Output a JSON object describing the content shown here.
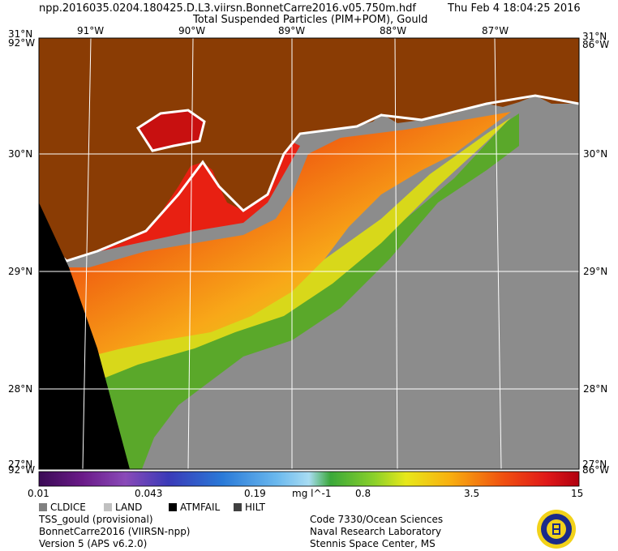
{
  "header": {
    "filename": "npp.2016035.0204.180425.D.L3.viirsn.BonnetCarre2016.v05.750m.hdf",
    "product": "Total Suspended Particles (PIM+POM), Gould",
    "timestamp": "Thu Feb  4 18:04:25 2016"
  },
  "map": {
    "lat_labels": [
      "31°N",
      "30°N",
      "29°N",
      "28°N"
    ],
    "lon_labels": [
      "91°W",
      "90°W",
      "89°W",
      "88°W",
      "87°W"
    ],
    "corner_labels": {
      "top_left_a": "31°N",
      "top_left_b": "92°W",
      "top_right_a": "31°N",
      "top_right_b": "86°W",
      "bottom_left_a": "27°N",
      "bottom_left_b": "92°W",
      "bottom_right_a": "27°N",
      "bottom_right_b": "86°W"
    },
    "colors": {
      "land": "#8a3c04",
      "no_data": "#000000",
      "cloud_ice": "#8c8c8c",
      "outline": "#ffffff"
    }
  },
  "colorbar": {
    "tick_labels": [
      "0.01",
      "0.043",
      "0.19",
      "0.8",
      "3.5",
      "15"
    ],
    "units": "mg l^-1",
    "range": [
      0.01,
      15
    ],
    "scale": "log"
  },
  "legend": {
    "items": [
      {
        "label": "CLDICE",
        "color": "#808080"
      },
      {
        "label": "LAND",
        "color": "#c0c0c0"
      },
      {
        "label": "ATMFAIL",
        "color": "#000000"
      },
      {
        "label": "HILT",
        "color": "#404040"
      }
    ]
  },
  "footer": {
    "left": [
      "TSS_gould (provisional)",
      "BonnetCarre2016 (VIIRSN-npp)",
      "Version 5 (APS v6.2.0)"
    ],
    "right": [
      "Code 7330/Ocean Sciences",
      "Naval Research Laboratory",
      "Stennis Space Center, MS"
    ]
  }
}
